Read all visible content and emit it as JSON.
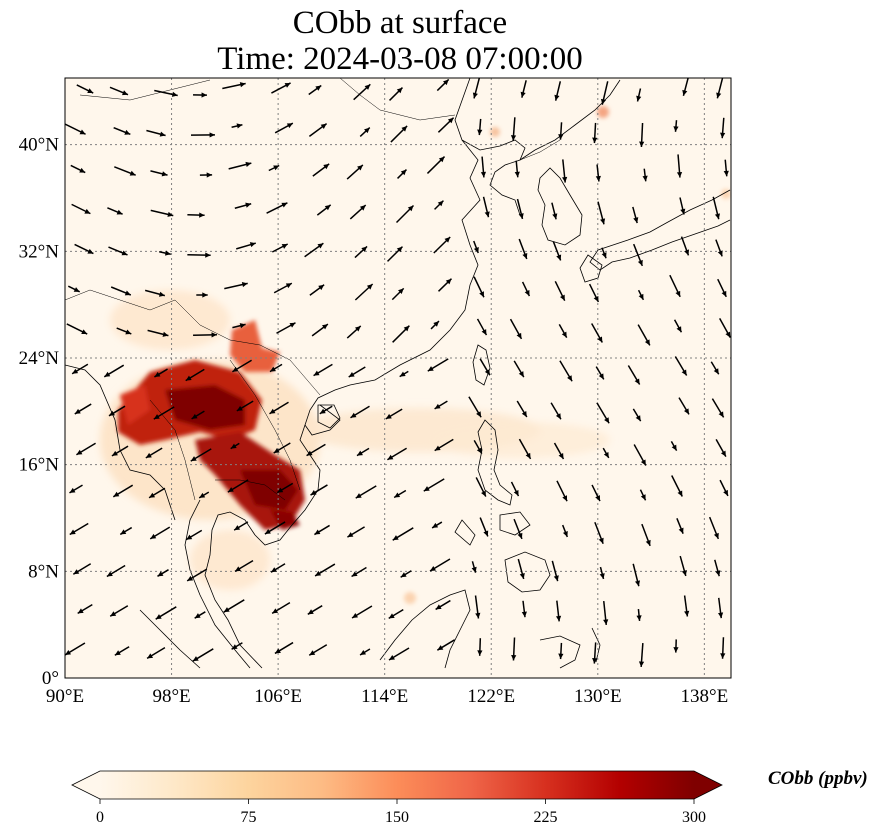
{
  "title": {
    "line1": "CObb at surface",
    "line2": "Time: 2024-03-08 07:00:00"
  },
  "axes": {
    "lon_labels": [
      "90°E",
      "98°E",
      "106°E",
      "114°E",
      "122°E",
      "130°E",
      "138°E"
    ],
    "lat_labels": [
      "0°",
      "8°N",
      "16°N",
      "24°N",
      "32°N",
      "40°N"
    ],
    "lon_values": [
      90,
      98,
      106,
      114,
      122,
      130,
      138
    ],
    "lat_values": [
      0,
      8,
      16,
      24,
      32,
      40
    ],
    "lon_range": [
      90,
      140
    ],
    "lat_range": [
      0,
      45
    ],
    "gridlines": "dotted"
  },
  "colorbar": {
    "label": "CObb (ppbv)",
    "ticks": [
      "0",
      "75",
      "150",
      "225",
      "300"
    ],
    "tick_values": [
      0,
      75,
      150,
      225,
      300
    ],
    "range": [
      0,
      300
    ],
    "colormap": "OrRd",
    "extend": "both",
    "colors": [
      "#fff7ec",
      "#fee8c8",
      "#fdd49e",
      "#fdbb84",
      "#fc8d59",
      "#ef6548",
      "#d7301f",
      "#b30000",
      "#7f0000"
    ]
  },
  "colors": {
    "background": "#fff7ec",
    "coastline": "#000000",
    "arrows": "#000000"
  }
}
